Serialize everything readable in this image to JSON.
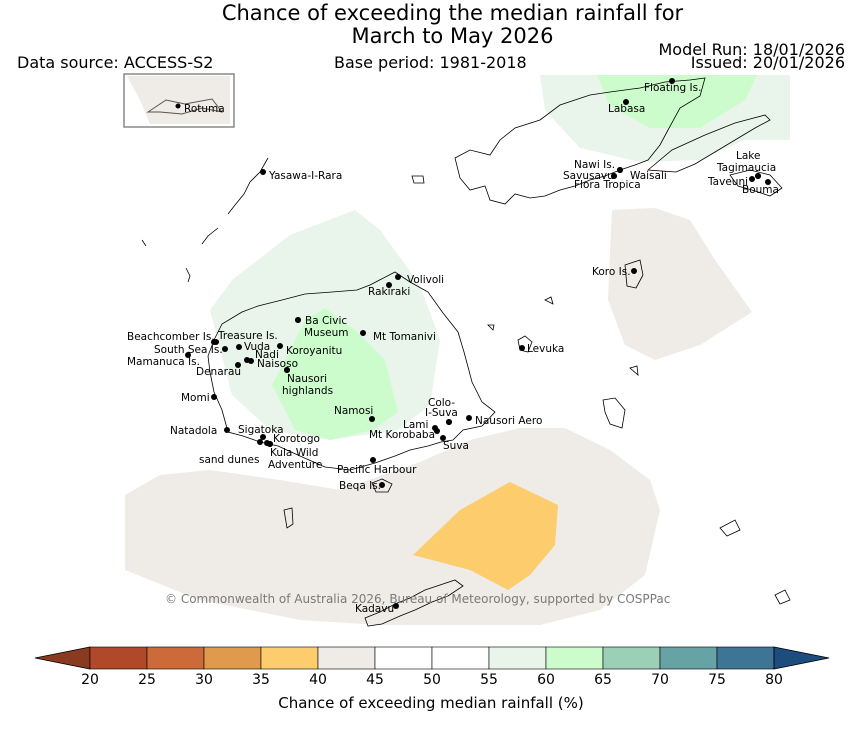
{
  "header": {
    "title_line1": "Chance of exceeding the median rainfall for",
    "title_line2": "March to May 2026",
    "data_source": "Data source: ACCESS-S2",
    "base_period": "Base period: 1981-2018",
    "model_run": "Model Run: 18/01/2026",
    "issued": "Issued: 20/01/2026"
  },
  "inset": {
    "label": "Rotuma"
  },
  "places": [
    {
      "name": "Floating Is."
    },
    {
      "name": "Labasa"
    },
    {
      "name": "Nawi Is."
    },
    {
      "name": "Savusavu"
    },
    {
      "name": "Waisali"
    },
    {
      "name": "Flora Tropica"
    },
    {
      "name": "Lake"
    },
    {
      "name": "Tagimaucia"
    },
    {
      "name": "Taveuni"
    },
    {
      "name": "Bouma"
    },
    {
      "name": "Yasawa-I-Rara"
    },
    {
      "name": "Koro Is."
    },
    {
      "name": "Volivoli"
    },
    {
      "name": "Rakiraki"
    },
    {
      "name": "Ba Civic"
    },
    {
      "name": "Museum"
    },
    {
      "name": "Mt Tomanivi"
    },
    {
      "name": "Beachcomber Is."
    },
    {
      "name": "Treasure Is."
    },
    {
      "name": "South Sea Is."
    },
    {
      "name": "Vuda"
    },
    {
      "name": "Koroyanitu"
    },
    {
      "name": "Nadi"
    },
    {
      "name": "Mamanuca Is."
    },
    {
      "name": "Naisoso"
    },
    {
      "name": "Denarau"
    },
    {
      "name": "Nausori"
    },
    {
      "name": "highlands"
    },
    {
      "name": "Levuka"
    },
    {
      "name": "Momi"
    },
    {
      "name": "Namosi"
    },
    {
      "name": "Colo-"
    },
    {
      "name": "I-Suva"
    },
    {
      "name": "Lami"
    },
    {
      "name": "Nausori Aero"
    },
    {
      "name": "Mt Korobaba"
    },
    {
      "name": "Suva"
    },
    {
      "name": "Natadola"
    },
    {
      "name": "Sigatoka"
    },
    {
      "name": "Korotogo"
    },
    {
      "name": "sand dunes"
    },
    {
      "name": "Kula Wild"
    },
    {
      "name": "Adventure"
    },
    {
      "name": "Pacific Harbour"
    },
    {
      "name": "Beqa Is."
    },
    {
      "name": "Kadavu"
    }
  ],
  "copyright": "© Commonwealth of Australia 2026, Bureau of Meteorology, supported by COSPPac",
  "colorbar": {
    "label": "Chance of exceeding median rainfall (%)",
    "ticks": [
      "20",
      "25",
      "30",
      "35",
      "40",
      "45",
      "50",
      "55",
      "60",
      "65",
      "70",
      "75",
      "80"
    ],
    "colors": [
      "#b0492a",
      "#cc6a3a",
      "#e09a4e",
      "#fdcc6c",
      "#efebe6",
      "#ffffff",
      "#ffffff",
      "#e9f5ea",
      "#ccfccc",
      "#9bcfb6",
      "#67a2a4",
      "#3e7496"
    ],
    "under_color": "#8b3a22",
    "over_color": "#1c4d7e"
  }
}
